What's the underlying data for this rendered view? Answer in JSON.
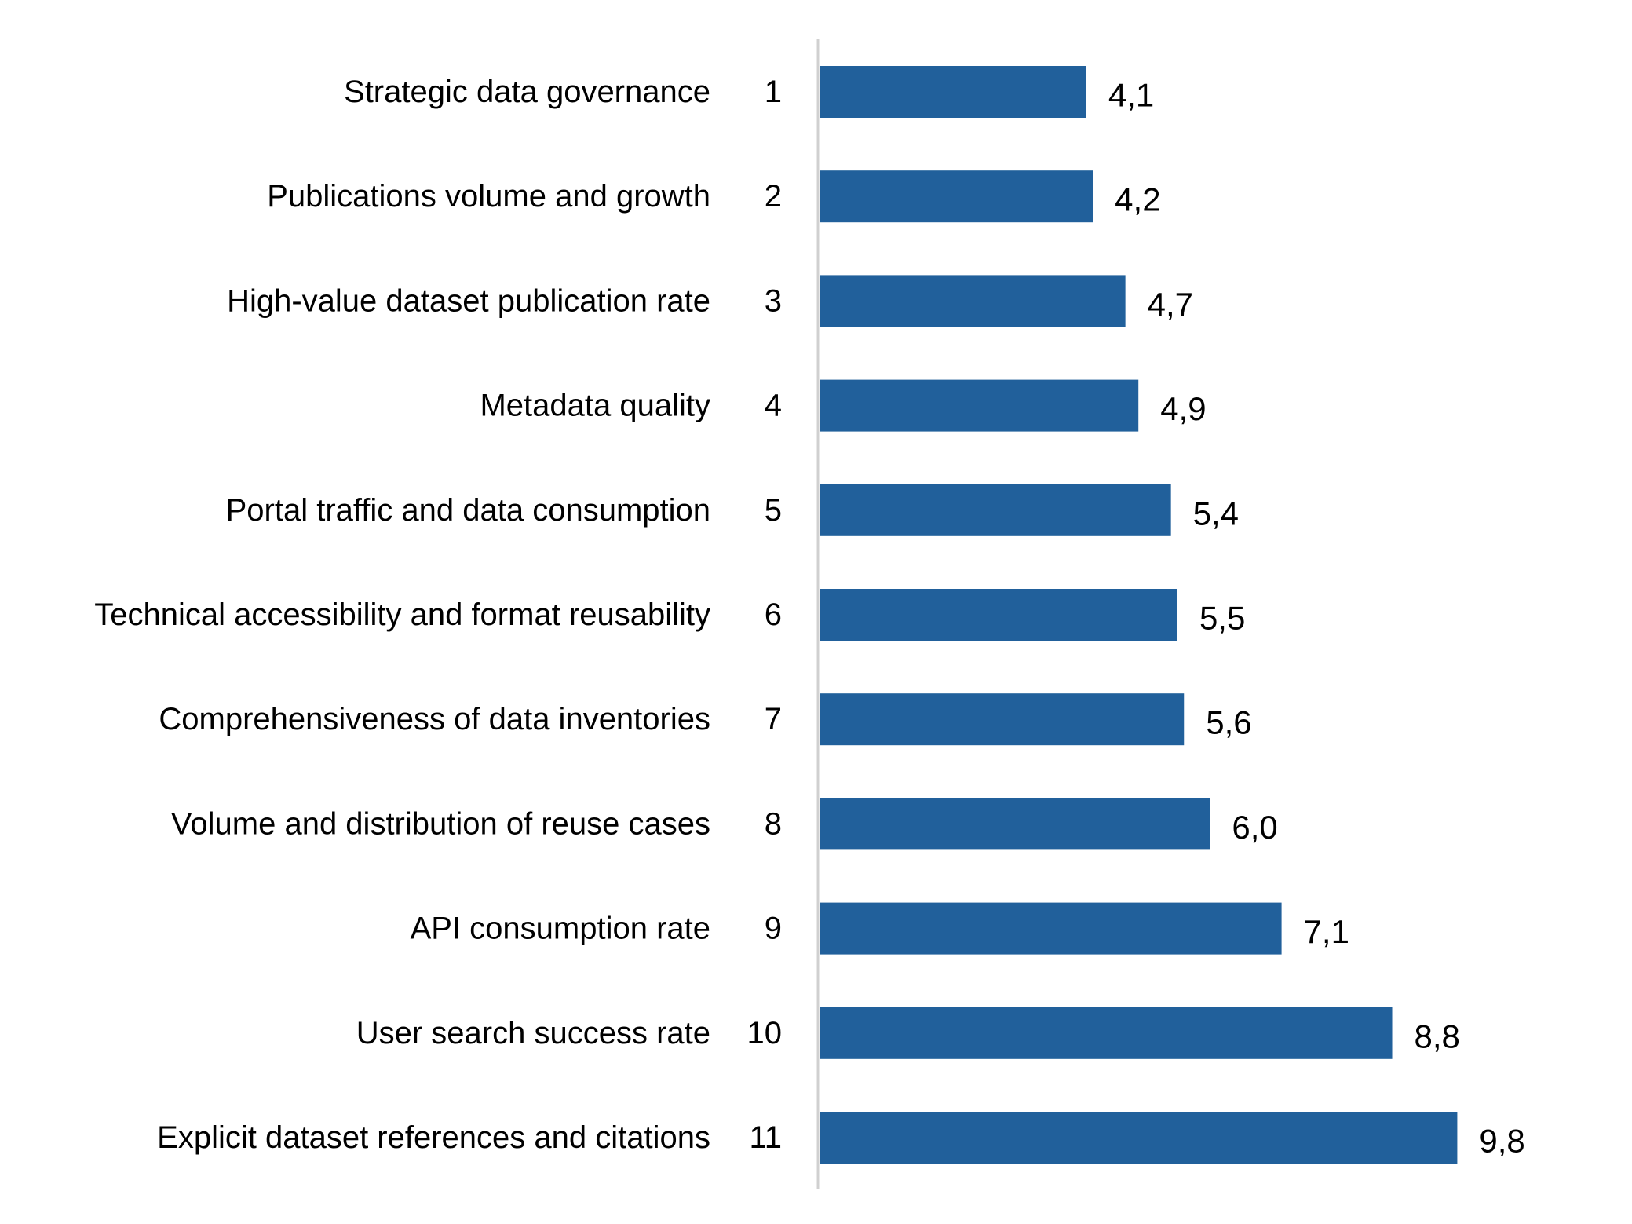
{
  "chart_data": {
    "type": "bar",
    "orientation": "horizontal",
    "categories": [
      "Strategic data governance",
      "Publications volume and growth",
      "High-value dataset publication rate",
      "Metadata quality",
      "Portal traffic and data consumption",
      "Technical accessibility and format reusability",
      "Comprehensiveness of data inventories",
      "Volume and distribution of reuse cases",
      "API consumption rate",
      "User search success rate",
      "Explicit dataset references and citations"
    ],
    "ranks": [
      "1",
      "2",
      "3",
      "4",
      "5",
      "6",
      "7",
      "8",
      "9",
      "10",
      "11"
    ],
    "values": [
      4.1,
      4.2,
      4.7,
      4.9,
      5.4,
      5.5,
      5.6,
      6.0,
      7.1,
      8.8,
      9.8
    ],
    "value_labels": [
      "4,1",
      "4,2",
      "4,7",
      "4,9",
      "5,4",
      "5,5",
      "5,6",
      "6,0",
      "7,1",
      "8,8",
      "9,8"
    ],
    "title": "",
    "xlabel": "",
    "ylabel": "",
    "xlim": [
      0,
      11
    ],
    "grid": false,
    "legend": "none",
    "colors": {
      "bar": "#21609B",
      "axis": "#D0D0D0",
      "text": "#000000"
    }
  }
}
